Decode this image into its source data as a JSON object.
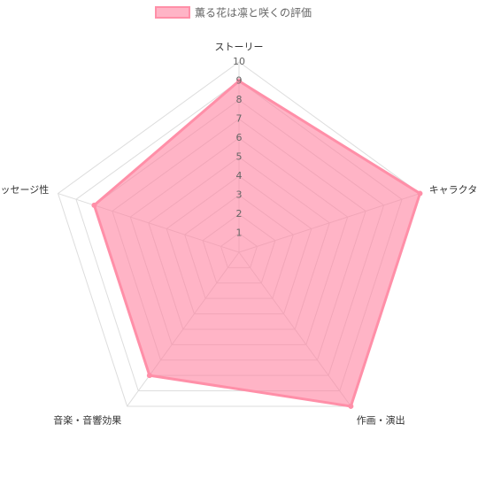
{
  "chart_data": {
    "type": "radar",
    "categories": [
      "ストーリー",
      "キャラクター",
      "作画・演出",
      "音楽・音響効果",
      "メッセージ性"
    ],
    "series": [
      {
        "name": "薫る花は凛と咲くの評価",
        "color": "#ff8fa8",
        "fill": "rgba(255,130,160,0.6)",
        "values": [
          9,
          10,
          10,
          8,
          8
        ]
      }
    ],
    "rlim": [
      0,
      10
    ],
    "rticks": [
      1,
      2,
      3,
      4,
      5,
      6,
      7,
      8,
      9,
      10
    ],
    "grid": true,
    "legend": "top"
  }
}
